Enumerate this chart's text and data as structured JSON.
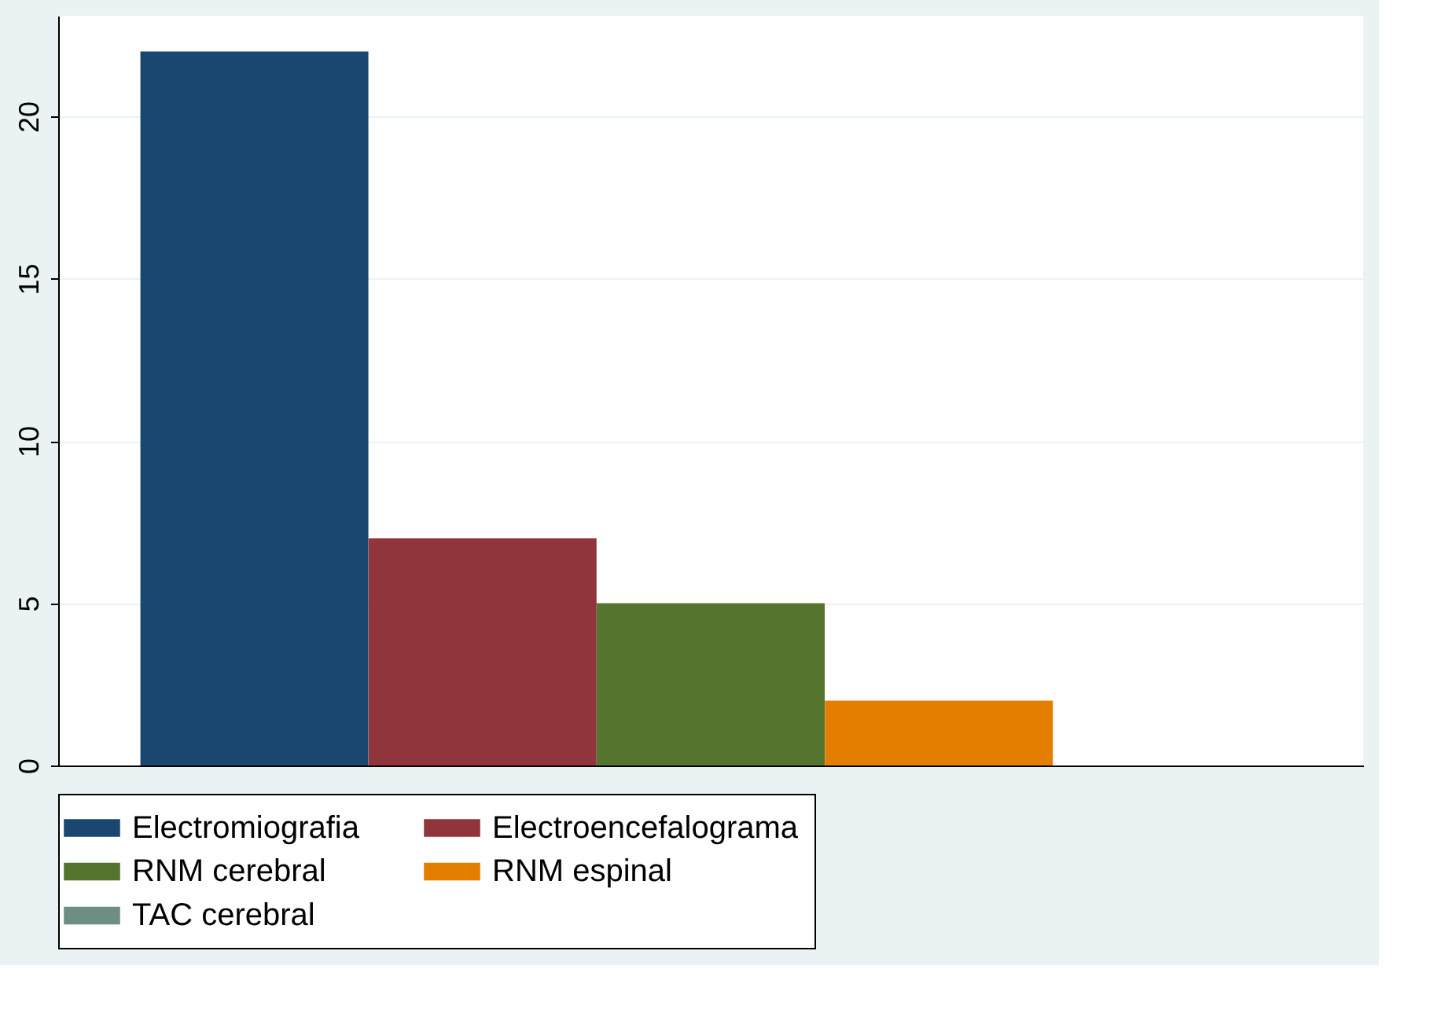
{
  "chart_data": {
    "type": "bar",
    "categories": [
      null,
      null,
      null,
      null,
      null
    ],
    "series": [
      {
        "name": "Electromiografia",
        "color": "#1a476f",
        "values": [
          22,
          null,
          null,
          null,
          null
        ]
      },
      {
        "name": "Electroencefalograma",
        "color": "#90353b",
        "values": [
          null,
          7,
          null,
          null,
          null
        ]
      },
      {
        "name": "RNM cerebral",
        "color": "#55752f",
        "values": [
          null,
          null,
          5,
          null,
          null
        ]
      },
      {
        "name": "RNM espinal",
        "color": "#e37e00",
        "values": [
          null,
          null,
          null,
          2,
          null
        ]
      },
      {
        "name": "TAC cerebral",
        "color": "#6e8e84",
        "values": [
          null,
          null,
          null,
          null,
          0
        ]
      }
    ],
    "ylim": [
      0,
      23.1
    ],
    "yticks": [
      0,
      5,
      10,
      15,
      20
    ],
    "grid": "y",
    "legend": "bottom",
    "tick_labels": "y"
  }
}
